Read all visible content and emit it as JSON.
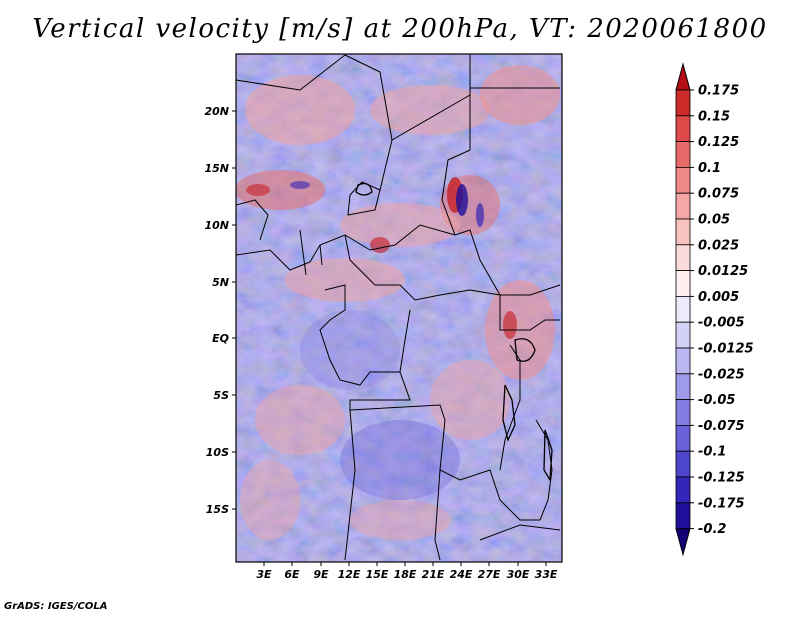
{
  "title": "Vertical velocity [m/s] at 200hPa, VT: 2020061800",
  "credit": "GrADS: IGES/COLA",
  "map": {
    "lat_ticks": [
      "20N",
      "15N",
      "10N",
      "5N",
      "EQ",
      "5S",
      "10S",
      "15S"
    ],
    "lon_ticks": [
      "3E",
      "6E",
      "9E",
      "12E",
      "15E",
      "18E",
      "21E",
      "24E",
      "27E",
      "30E",
      "33E"
    ]
  },
  "colorbar": {
    "labels": [
      "0.175",
      "0.15",
      "0.125",
      "0.1",
      "0.075",
      "0.05",
      "0.025",
      "0.0125",
      "0.005",
      "-0.005",
      "-0.0125",
      "-0.025",
      "-0.05",
      "-0.075",
      "-0.1",
      "-0.125",
      "-0.175",
      "-0.2"
    ],
    "colors": [
      "#b40f14",
      "#cd2a2a",
      "#de4a49",
      "#e86a68",
      "#ef8b88",
      "#f4a7a4",
      "#f8c3c1",
      "#fbdcdb",
      "#fdf0ef",
      "#ecebfb",
      "#d3d1f6",
      "#b9b6f0",
      "#9f9ae9",
      "#857ee2",
      "#6a62da",
      "#4e45cd",
      "#3326b8",
      "#1f0f9a",
      "#120075"
    ]
  }
}
